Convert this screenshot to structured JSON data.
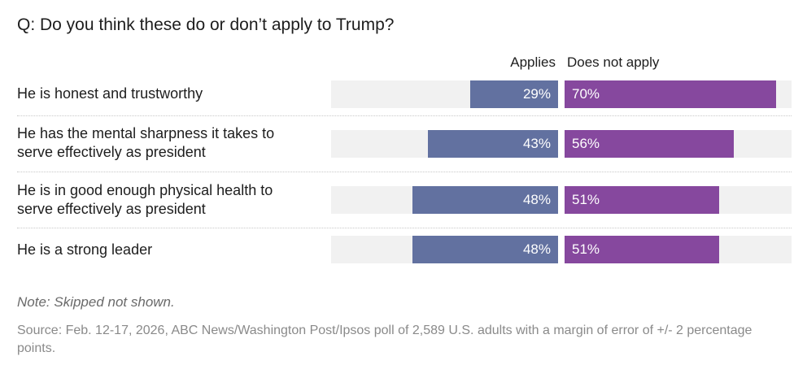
{
  "title": "Q: Do you think these do or don’t apply to Trump?",
  "colors": {
    "applies": "#6271a0",
    "does_not_apply": "#86489e",
    "track": "#f1f1f1"
  },
  "chart_data": {
    "type": "bar",
    "orientation": "diverging-horizontal",
    "title": "Q: Do you think these do or don’t apply to Trump?",
    "categories": [
      "He is honest and trustworthy",
      "He has the mental sharpness it takes to serve effectively as president",
      "He is in good enough physical health to serve effectively as president",
      "He is a strong leader"
    ],
    "series": [
      {
        "name": "Applies",
        "values": [
          29,
          43,
          48,
          48
        ],
        "labels": [
          "29%",
          "43%",
          "48%",
          "48%"
        ]
      },
      {
        "name": "Does not apply",
        "values": [
          70,
          56,
          51,
          51
        ],
        "labels": [
          "70%",
          "56%",
          "51%",
          "51%"
        ]
      }
    ],
    "xlim": [
      0,
      75
    ],
    "unit": "%",
    "grid": false,
    "legend": "top (column headers)"
  },
  "rows": [
    {
      "label_lines": [
        "He is honest and trustworthy"
      ]
    },
    {
      "label_lines": [
        "He has the mental sharpness it takes to",
        "serve effectively as president"
      ]
    },
    {
      "label_lines": [
        "He is in good enough physical health to",
        "serve effectively as president"
      ]
    },
    {
      "label_lines": [
        "He is a strong leader"
      ]
    }
  ],
  "note": "Note: Skipped not shown.",
  "source": "Source: Feb. 12-17, 2026, ABC News/Washington Post/Ipsos poll of 2,589 U.S. adults with a margin of error of +/- 2 percentage points."
}
